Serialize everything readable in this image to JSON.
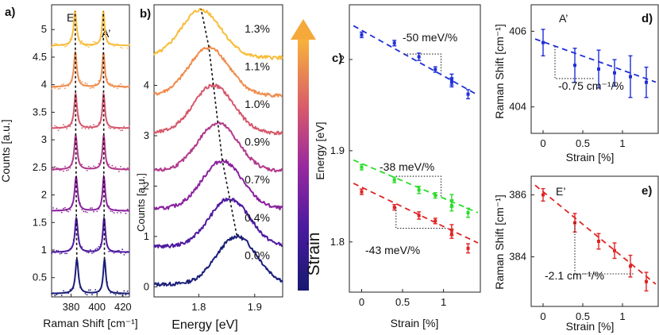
{
  "chart_data": [
    {
      "id": "a",
      "type": "line",
      "panel_label": "a)",
      "xlabel": "Raman Shift [cm⁻¹]",
      "ylabel": "Counts [a.u.]",
      "xlim": [
        365,
        425
      ],
      "ylim": [
        0.15,
        5.45
      ],
      "xticks": [
        380,
        400,
        420
      ],
      "xtick_labels": [
        "380",
        "400",
        "420"
      ],
      "yticks": [
        0.5,
        1,
        1.5,
        2,
        2.5,
        3,
        3.5,
        4,
        4.5,
        5
      ],
      "ytick_labels": [
        "0.5",
        "1",
        "1.5",
        "2",
        "2.5",
        "3",
        "3.5",
        "4",
        "4.5",
        "5"
      ],
      "peak_labels": [
        "E’",
        "A’"
      ],
      "strains": [
        0.0,
        0.4,
        0.7,
        0.9,
        1.0,
        1.1,
        1.3
      ],
      "offsets": [
        0.2,
        0.95,
        1.7,
        2.45,
        3.2,
        3.95,
        4.7
      ],
      "e_peak_positions": [
        384.5,
        384.1,
        383.9,
        383.6,
        383.5,
        383.3,
        383.1
      ],
      "a_peak_positions": [
        405.8,
        405.5,
        405.3,
        405.2,
        405.1,
        405.0,
        404.9
      ],
      "colors": [
        "#1b1e78",
        "#4e1aa0",
        "#8a229e",
        "#b23a8c",
        "#d6586c",
        "#ef8d4f",
        "#f8bd3c"
      ]
    },
    {
      "id": "b",
      "type": "line",
      "panel_label": "b)",
      "xlabel": "Energy [eV]",
      "ylabel": "Counts [a.u.]",
      "xlim": [
        1.72,
        1.95
      ],
      "ylim": [
        -0.2,
        5.6
      ],
      "xticks": [
        1.8,
        1.9
      ],
      "xtick_labels": [
        "1.8",
        "1.9"
      ],
      "yticks": [
        0,
        1,
        2,
        3,
        4
      ],
      "ytick_labels": [
        "0",
        "1",
        "2",
        "3",
        "4"
      ],
      "strain_labels": [
        "0.0%",
        "0.4%",
        "0.7%",
        "0.9%",
        "1.0%",
        "1.1%",
        "1.3%"
      ],
      "strains": [
        0.0,
        0.4,
        0.7,
        0.9,
        1.0,
        1.1,
        1.3
      ],
      "offsets": [
        0.0,
        0.75,
        1.5,
        2.25,
        3.0,
        3.75,
        4.5
      ],
      "peak_energy": [
        1.868,
        1.855,
        1.842,
        1.834,
        1.826,
        1.818,
        1.804
      ],
      "colors": [
        "#1b1e78",
        "#4e1aa0",
        "#8a229e",
        "#b23a8c",
        "#d6586c",
        "#ef8d4f",
        "#f8bd3c"
      ],
      "colorbar_label": "Strain"
    },
    {
      "id": "c",
      "type": "scatter",
      "panel_label": "c)",
      "xlabel": "Strain [%]",
      "ylabel": "Energy [eV]",
      "xlim": [
        -0.15,
        1.45
      ],
      "ylim": [
        1.745,
        2.06
      ],
      "xticks": [
        0,
        0.5,
        1
      ],
      "xtick_labels": [
        "0",
        "0.5",
        "1"
      ],
      "yticks": [
        1.8,
        1.9,
        2.0
      ],
      "ytick_labels": [
        "1.8",
        "1.9",
        "2"
      ],
      "series": [
        {
          "name": "blue",
          "color": "#1f2fd8",
          "x": [
            0,
            0.4,
            0.7,
            0.9,
            1.1,
            1.1,
            1.3
          ],
          "y": [
            2.027,
            2.018,
            2.003,
            1.989,
            1.978,
            1.975,
            1.962
          ],
          "err": [
            0.003,
            0.003,
            0.004,
            0.003,
            0.006,
            0.005,
            0.005
          ],
          "fit": [
            2.032,
            -0.05
          ],
          "slope_label": "-50 meV/%"
        },
        {
          "name": "green",
          "color": "#2bdc2b",
          "x": [
            0,
            0.4,
            0.7,
            0.9,
            1.1,
            1.1,
            1.3
          ],
          "y": [
            1.882,
            1.868,
            1.857,
            1.851,
            1.845,
            1.84,
            1.832
          ],
          "err": [
            0.003,
            0.003,
            0.004,
            0.003,
            0.007,
            0.006,
            0.005
          ],
          "fit": [
            1.886,
            -0.038
          ],
          "slope_label": "-38 meV/%"
        },
        {
          "name": "red",
          "color": "#e02424",
          "x": [
            0,
            0.4,
            0.7,
            0.9,
            1.1,
            1.1,
            1.3
          ],
          "y": [
            1.855,
            1.838,
            1.829,
            1.823,
            1.813,
            1.809,
            1.793
          ],
          "err": [
            0.003,
            0.003,
            0.004,
            0.003,
            0.006,
            0.005,
            0.005
          ],
          "fit": [
            1.86,
            -0.043
          ],
          "slope_label": "-43 meV/%"
        }
      ]
    },
    {
      "id": "d",
      "type": "scatter",
      "panel_label": "d)",
      "peak_label": "A’",
      "xlabel": "Strain [%]",
      "ylabel": "Raman Shift [cm⁻¹]",
      "xlim": [
        -0.15,
        1.45
      ],
      "ylim": [
        403.3,
        406.7
      ],
      "xticks": [
        0,
        0.5,
        1
      ],
      "xtick_labels": [
        "0",
        "0.5",
        "1"
      ],
      "yticks": [
        404,
        406
      ],
      "ytick_labels": [
        "404",
        "406"
      ],
      "series": [
        {
          "name": "A’",
          "color": "#1f2fd8",
          "x": [
            0,
            0.4,
            0.7,
            0.9,
            1.1,
            1.3
          ],
          "y": [
            405.7,
            405.1,
            405.0,
            404.9,
            404.8,
            404.65
          ],
          "err": [
            0.35,
            0.45,
            0.5,
            0.35,
            0.55,
            0.4
          ],
          "fit": [
            405.72,
            -0.75
          ],
          "slope_label": "-0.75 cm⁻¹/%"
        }
      ]
    },
    {
      "id": "e",
      "type": "scatter",
      "panel_label": "e)",
      "peak_label": "E’",
      "xlabel": "Strain [%]",
      "ylabel": "Raman Shift [cm⁻¹]",
      "xlim": [
        -0.15,
        1.45
      ],
      "ylim": [
        382.4,
        386.6
      ],
      "xticks": [
        0,
        0.5,
        1
      ],
      "xtick_labels": [
        "0",
        "0.5",
        "1"
      ],
      "yticks": [
        384,
        386
      ],
      "ytick_labels": [
        "384",
        "386"
      ],
      "series": [
        {
          "name": "E’",
          "color": "#e02424",
          "x": [
            0,
            0.4,
            0.7,
            0.9,
            1.1,
            1.3
          ],
          "y": [
            386.0,
            385.1,
            384.5,
            384.2,
            383.7,
            383.2
          ],
          "err": [
            0.2,
            0.3,
            0.25,
            0.25,
            0.35,
            0.3
          ],
          "fit": [
            386.1,
            -2.1
          ],
          "slope_label": "-2.1 cm⁻¹/%"
        }
      ]
    }
  ]
}
